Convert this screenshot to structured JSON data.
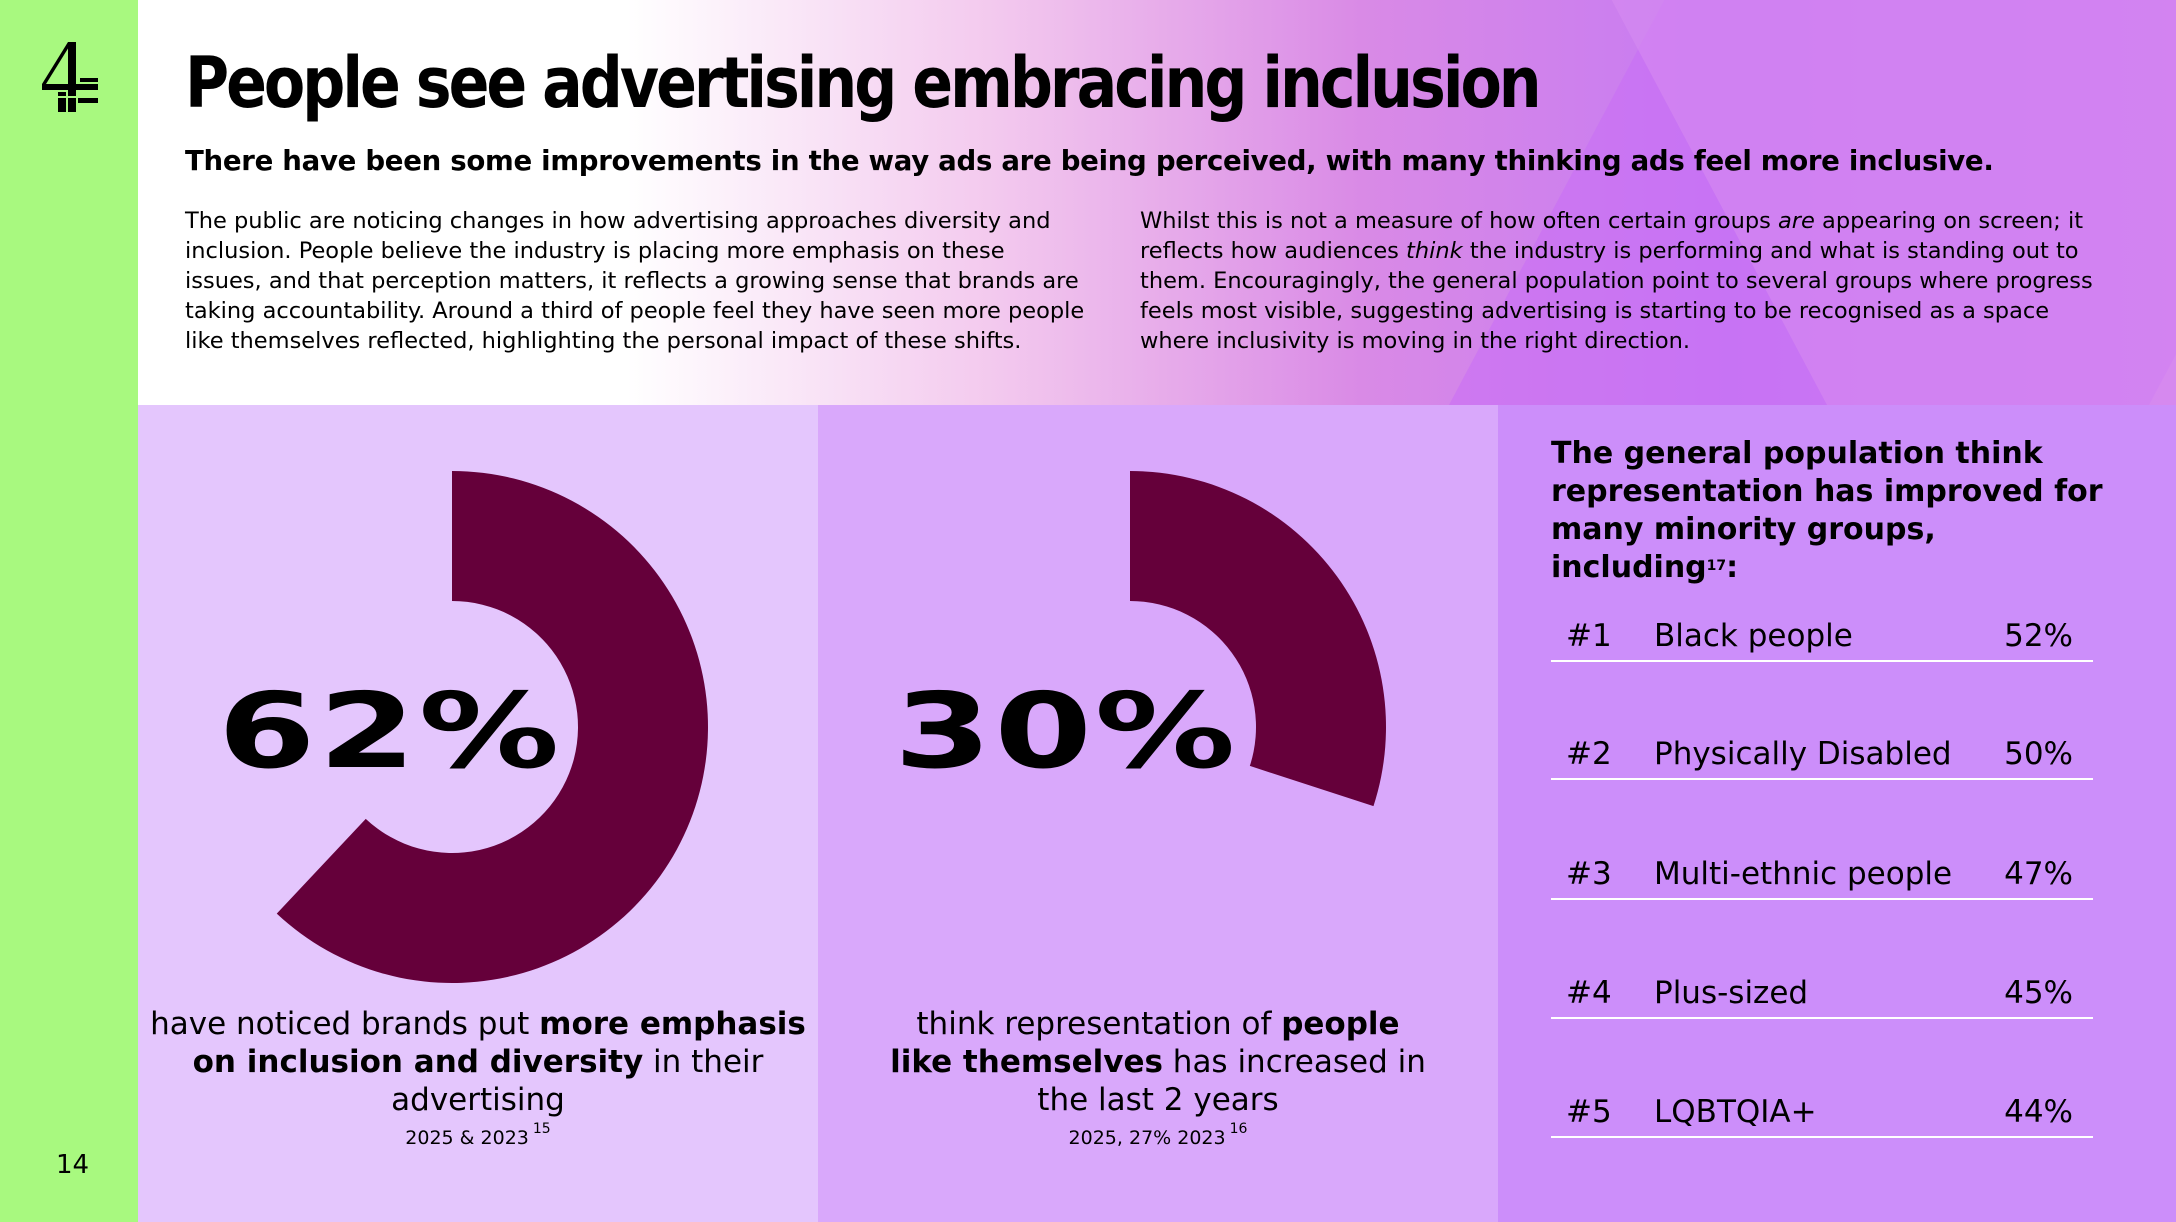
{
  "page": {
    "number": "14"
  },
  "header": {
    "title": "People see advertising embracing inclusion",
    "subtitle": "There have been some improvements in the way ads are being perceived, with many thinking ads feel more inclusive.",
    "left_paragraph": "The public are noticing changes in how advertising approaches diversity and inclusion. People believe the industry is placing more emphasis on these issues, and that perception matters, it reflects a growing sense that brands are taking accountability. Around a third of people feel they have seen more people like themselves reflected, highlighting the personal impact of these shifts.",
    "right_paragraph": {
      "part1": "Whilst this is not a measure of how often certain groups ",
      "em1": "are",
      "part2": " appearing on screen; it reflects how audiences ",
      "em2": "think",
      "part3": " the industry is performing and what is standing out to them. Encouragingly, the general population point to several groups where progress feels most visible, suggesting advertising is starting to be recognised as a space where inclusivity is moving in the right direction."
    }
  },
  "stat1": {
    "value_label": "62%",
    "value": 62,
    "caption_pre": "have noticed brands put ",
    "caption_bold": "more emphasis on inclusion and diversity",
    "caption_post": " in their advertising",
    "source": "2025 & 2023",
    "footnote": "15"
  },
  "stat2": {
    "value_label": "30%",
    "value": 30,
    "caption_pre": "think representation of ",
    "caption_bold": "people like themselves",
    "caption_post": " has increased in the last 2 years",
    "source": "2025, 27% 2023",
    "footnote": "16"
  },
  "ranking": {
    "title": "The general population think representation has improved for many minority groups, including",
    "footnote": "17",
    "title_suffix": ":",
    "items": [
      {
        "rank": "#1",
        "label": "Black people",
        "value": "52%"
      },
      {
        "rank": "#2",
        "label": "Physically Disabled",
        "value": "50%"
      },
      {
        "rank": "#3",
        "label": "Multi-ethnic people",
        "value": "47%"
      },
      {
        "rank": "#4",
        "label": "Plus-sized",
        "value": "45%"
      },
      {
        "rank": "#5",
        "label": "LQBTQIA+",
        "value": "44%"
      }
    ]
  },
  "colors": {
    "donut": "#65003a",
    "sidebar": "#a8f97f"
  }
}
